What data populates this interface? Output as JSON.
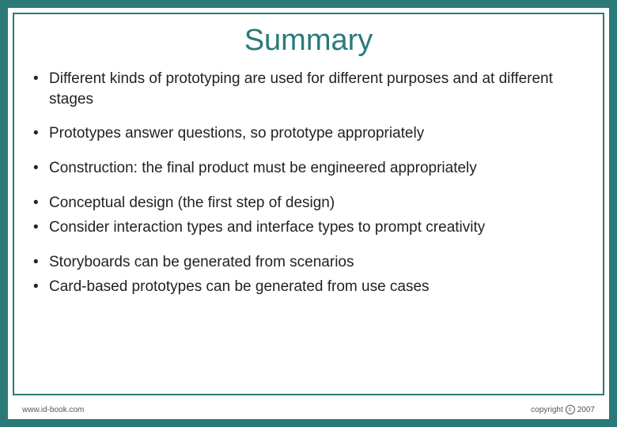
{
  "slide": {
    "title": "Summary",
    "title_color": "#2b7a7a",
    "title_fontsize": 38,
    "body_fontsize": 19,
    "body_color": "#222222",
    "border_color": "#2b7a7a",
    "background_color": "#2b7a7a",
    "inner_background": "#ffffff",
    "bullets": [
      {
        "text": "Different kinds of prototyping are used for different purposes and at different stages",
        "spacing": "normal"
      },
      {
        "text": "Prototypes answer questions, so prototype appropriately",
        "spacing": "normal"
      },
      {
        "text": "Construction: the final product must be engineered appropriately",
        "spacing": "normal"
      },
      {
        "text": "Conceptual design (the first step of design)",
        "spacing": "tight"
      },
      {
        "text": "Consider interaction types and interface types to prompt creativity",
        "spacing": "normal"
      },
      {
        "text": "Storyboards can be generated from scenarios",
        "spacing": "tight"
      },
      {
        "text": "Card-based prototypes can be generated from use cases",
        "spacing": "normal"
      }
    ]
  },
  "footer": {
    "left": "www.id-book.com",
    "right_prefix": "copyright",
    "right_year": "2007"
  }
}
